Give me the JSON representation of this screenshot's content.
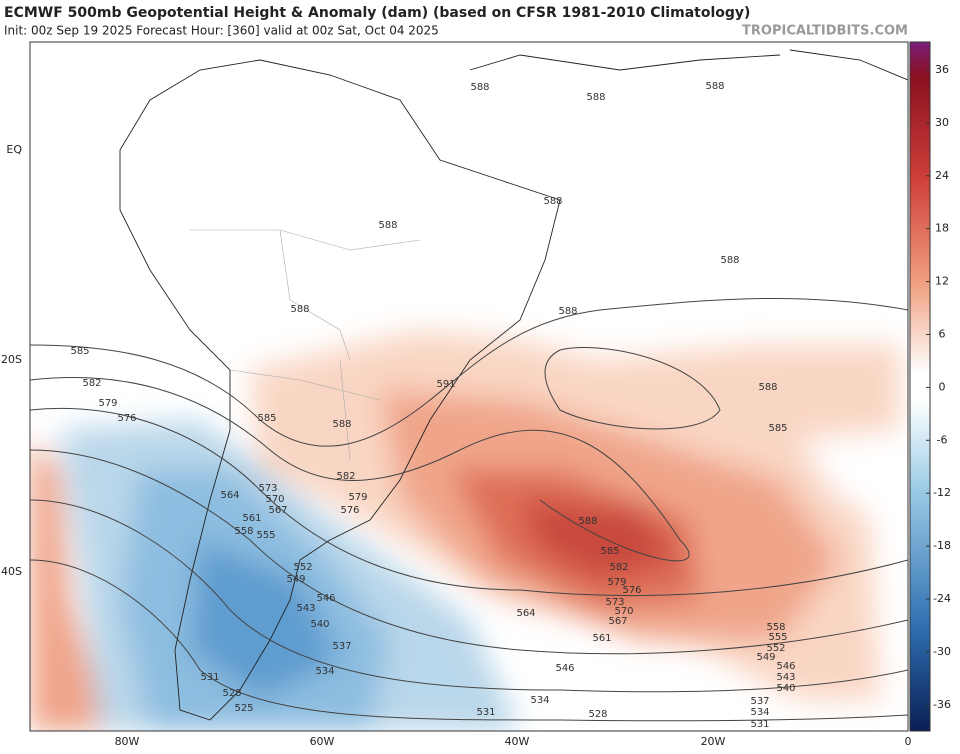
{
  "header": {
    "title": "ECMWF 500mb Geopotential Height & Anomaly (dam) (based on CFSR 1981-2010 Climatology)",
    "subtitle": "Init: 00z Sep 19 2025   Forecast Hour: [360]   valid at 00z Sat, Oct 04 2025",
    "credit": "TROPICALTIDBITS.COM"
  },
  "map": {
    "lat_labels": [
      "EQ",
      "20S",
      "40S"
    ],
    "lon_labels": [
      "80W",
      "60W",
      "40W",
      "20W",
      "0"
    ]
  },
  "colorbar": {
    "ticks": [
      "36",
      "30",
      "24",
      "18",
      "12",
      "6",
      "0",
      "-6",
      "-12",
      "-18",
      "-24",
      "-30",
      "-36"
    ]
  },
  "contour_labels": [
    "588",
    "588",
    "588",
    "588",
    "588",
    "588",
    "588",
    "588",
    "585",
    "582",
    "579",
    "576",
    "585",
    "588",
    "591",
    "588",
    "585",
    "582",
    "579",
    "576",
    "573",
    "570",
    "567",
    "564",
    "561",
    "558",
    "555",
    "552",
    "549",
    "546",
    "543",
    "540",
    "537",
    "534",
    "531",
    "528",
    "525",
    "588",
    "585",
    "582",
    "579",
    "576",
    "573",
    "570",
    "567",
    "564",
    "561",
    "546",
    "534",
    "531",
    "528",
    "558",
    "555",
    "552",
    "549",
    "546",
    "543",
    "540",
    "537",
    "534",
    "531"
  ]
}
